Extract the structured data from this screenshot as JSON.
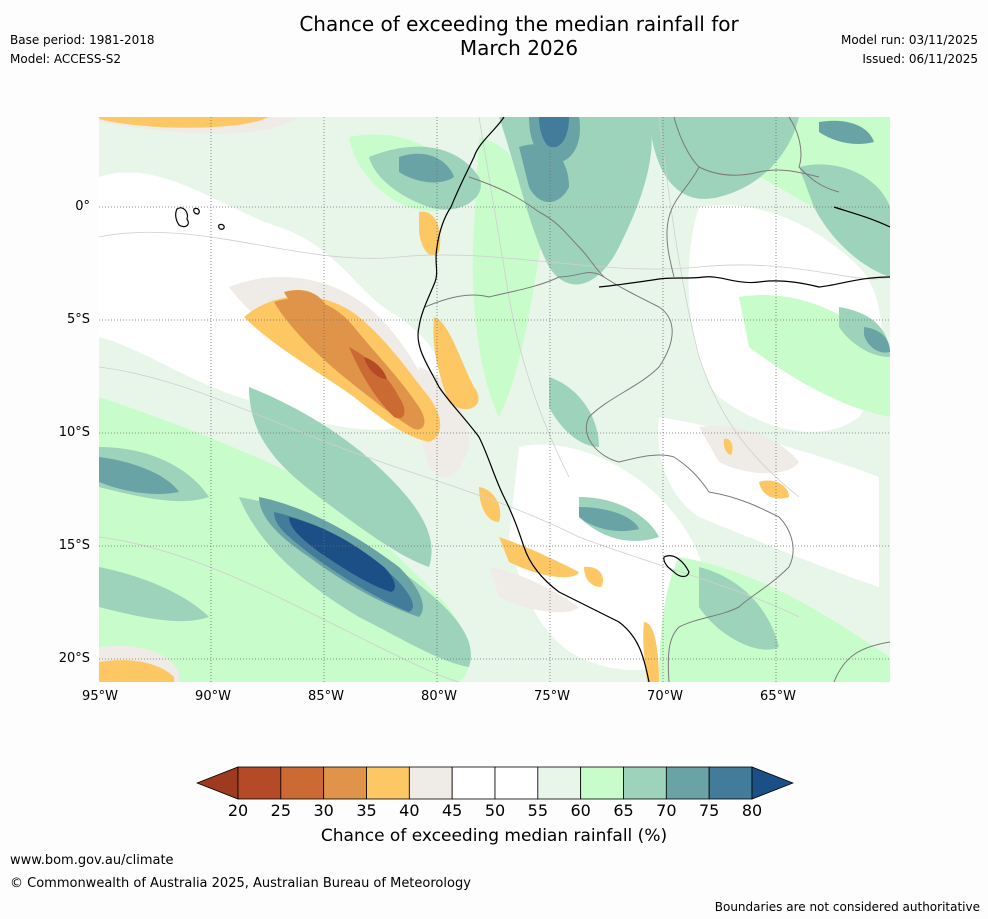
{
  "title_line1": "Chance of exceeding the median rainfall for",
  "title_line2": "March 2026",
  "base_period": "Base period: 1981-2018",
  "model": "Model: ACCESS-S2",
  "model_run": "Model run: 03/11/2025",
  "issued": "Issued: 06/11/2025",
  "lat_labels": [
    "0°",
    "5°S",
    "10°S",
    "15°S",
    "20°S"
  ],
  "lon_labels": [
    "95°W",
    "90°W",
    "85°W",
    "80°W",
    "75°W",
    "70°W",
    "65°W"
  ],
  "colorbar": {
    "levels": [
      "20",
      "25",
      "30",
      "35",
      "40",
      "45",
      "50",
      "55",
      "60",
      "65",
      "70",
      "75",
      "80"
    ],
    "colors": [
      "#9e3a1f",
      "#b54a26",
      "#cb6b33",
      "#e0944a",
      "#fdc864",
      "#efebe7",
      "#ffffff",
      "#ffffff",
      "#e8f6ea",
      "#c8fcca",
      "#9dd2bb",
      "#6aa3a6",
      "#437c9b",
      "#1c4f85"
    ],
    "title": "Chance of exceeding median rainfall (%)"
  },
  "footer": {
    "url": "www.bom.gov.au/climate",
    "copyright": "© Commonwealth of Australia 2025, Australian Bureau of Meteorology",
    "disclaimer": "Boundaries are not considered authoritative"
  }
}
